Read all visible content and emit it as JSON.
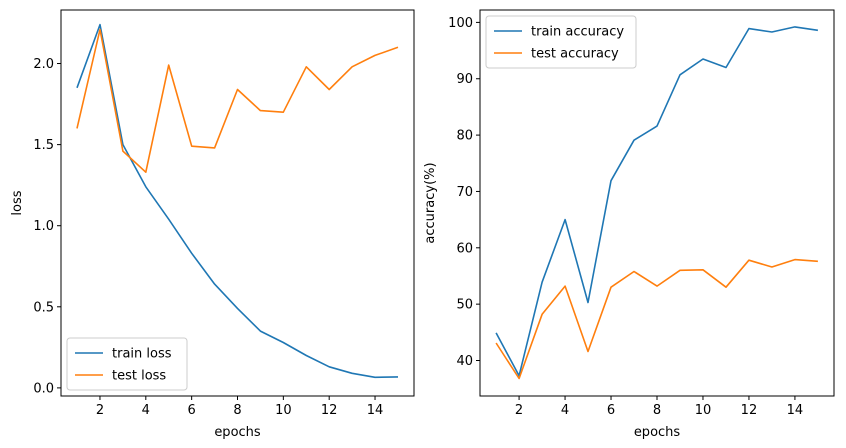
{
  "chart_data": [
    {
      "type": "line",
      "xlabel": "epochs",
      "ylabel": "loss",
      "xlim": [
        0.3,
        15.7
      ],
      "ylim": [
        -0.05,
        2.33
      ],
      "xticks": [
        2,
        4,
        6,
        8,
        10,
        12,
        14
      ],
      "yticks": [
        0.0,
        0.5,
        1.0,
        1.5,
        2.0
      ],
      "ytick_labels": [
        "0.0",
        "0.5",
        "1.0",
        "1.5",
        "2.0"
      ],
      "legend_position": "lower-left",
      "x": [
        1,
        2,
        3,
        4,
        5,
        6,
        7,
        8,
        9,
        10,
        11,
        12,
        13,
        14,
        15
      ],
      "series": [
        {
          "name": "train loss",
          "color": "#1f77b4",
          "values": [
            1.85,
            2.24,
            1.5,
            1.24,
            1.04,
            0.83,
            0.64,
            0.49,
            0.35,
            0.28,
            0.2,
            0.13,
            0.09,
            0.065,
            0.068
          ]
        },
        {
          "name": "test loss",
          "color": "#ff7f0e",
          "values": [
            1.6,
            2.21,
            1.46,
            1.33,
            1.99,
            1.49,
            1.48,
            1.84,
            1.71,
            1.7,
            1.98,
            1.84,
            1.98,
            2.05,
            2.1
          ]
        }
      ]
    },
    {
      "type": "line",
      "xlabel": "epochs",
      "ylabel": "accuracy(%)",
      "xlim": [
        0.3,
        15.7
      ],
      "ylim": [
        33.7,
        102.2
      ],
      "xticks": [
        2,
        4,
        6,
        8,
        10,
        12,
        14
      ],
      "yticks": [
        40,
        50,
        60,
        70,
        80,
        90,
        100
      ],
      "ytick_labels": [
        "40",
        "50",
        "60",
        "70",
        "80",
        "90",
        "100"
      ],
      "legend_position": "upper-left",
      "x": [
        1,
        2,
        3,
        4,
        5,
        6,
        7,
        8,
        9,
        10,
        11,
        12,
        13,
        14,
        15
      ],
      "series": [
        {
          "name": "train accuracy",
          "color": "#1f77b4",
          "values": [
            44.9,
            37.3,
            53.9,
            65.0,
            50.3,
            71.9,
            79.1,
            81.6,
            90.7,
            93.5,
            92.0,
            98.9,
            98.3,
            99.2,
            98.6
          ]
        },
        {
          "name": "test accuracy",
          "color": "#ff7f0e",
          "values": [
            43.1,
            36.8,
            48.2,
            53.2,
            41.6,
            53.0,
            55.8,
            53.2,
            56.0,
            56.1,
            53.0,
            57.8,
            56.6,
            57.9,
            57.6
          ]
        }
      ]
    }
  ]
}
